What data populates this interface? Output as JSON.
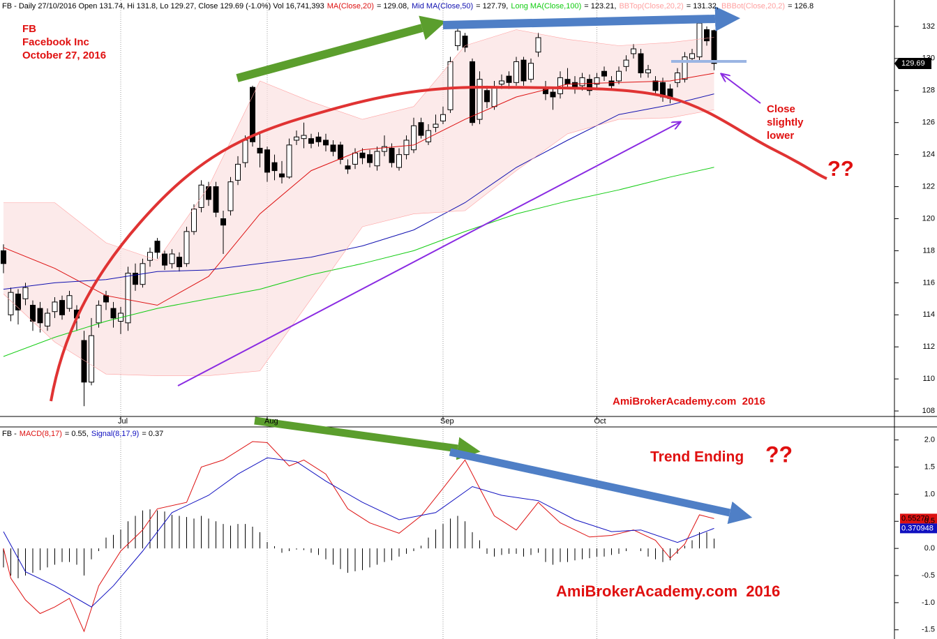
{
  "chart_data": [
    {
      "type": "candlestick",
      "title": "FB - Daily 27/10/2016 Open 131.74, Hi 131.8, Lo 129.27, Close 129.69 (-1.0%) Vol 16,741,393",
      "categories": [
        null,
        null,
        null,
        null,
        null,
        null,
        null,
        null,
        null,
        null,
        null,
        null,
        null,
        null,
        null,
        null,
        "Jul",
        null,
        null,
        null,
        null,
        null,
        null,
        null,
        null,
        null,
        null,
        null,
        null,
        null,
        null,
        null,
        null,
        null,
        null,
        null,
        "Aug",
        null,
        null,
        null,
        null,
        null,
        null,
        null,
        null,
        null,
        null,
        null,
        null,
        null,
        null,
        null,
        null,
        null,
        null,
        null,
        null,
        null,
        null,
        null,
        "Sep",
        null,
        null,
        null,
        null,
        null,
        null,
        null,
        null,
        null,
        null,
        null,
        null,
        null,
        null,
        null,
        null,
        null,
        null,
        null,
        null,
        "Oct",
        null,
        null,
        null,
        null,
        null,
        null,
        null,
        null,
        null,
        null,
        null,
        null,
        null,
        null,
        null,
        null
      ],
      "open": [
        118.0,
        114.0,
        115.3,
        115.0,
        114.6,
        114.4,
        113.3,
        114.2,
        114.9,
        114.4,
        114.3,
        112.4,
        109.8,
        113.5,
        115.2,
        114.4,
        113.6,
        113.5,
        116.6,
        115.9,
        117.4,
        118.6,
        117.8,
        117.2,
        117.6,
        117.2,
        119.2,
        120.7,
        122.0,
        122.0,
        120.0,
        120.5,
        122.4,
        123.5,
        128.2,
        124.4,
        124.3,
        123.5,
        122.8,
        122.6,
        124.9,
        125.0,
        125.0,
        125.1,
        124.9,
        124.6,
        124.6,
        123.3,
        123.4,
        124.1,
        124.0,
        123.3,
        124.2,
        124.4,
        123.2,
        124.0,
        124.3,
        126.0,
        124.8,
        125.7,
        126.1,
        126.8,
        130.8,
        131.4,
        129.8,
        126.2,
        128.0,
        127.0,
        128.4,
        128.9,
        128.5,
        129.9,
        128.7,
        130.4,
        128.2,
        127.9,
        127.8,
        128.7,
        128.5,
        128.3,
        128.7,
        128.4,
        129.2,
        128.6,
        128.6,
        129.5,
        130.3,
        130.3,
        129.1,
        128.6,
        128.5,
        128.1,
        128.5,
        128.7,
        130.0,
        130.1,
        131.8,
        131.74
      ],
      "high": [
        118.4,
        115.7,
        115.6,
        116.0,
        114.9,
        114.8,
        114.4,
        115.1,
        115.2,
        115.5,
        114.6,
        113.0,
        113.8,
        114.9,
        115.5,
        114.8,
        114.5,
        117.0,
        117.2,
        117.5,
        118.2,
        118.8,
        118.0,
        118.1,
        117.9,
        119.5,
        120.9,
        122.4,
        122.3,
        122.3,
        120.5,
        122.6,
        123.9,
        125.2,
        128.3,
        125.3,
        124.5,
        124.0,
        123.6,
        125.0,
        125.5,
        126.0,
        125.3,
        125.4,
        125.3,
        124.9,
        124.8,
        123.7,
        124.4,
        124.4,
        124.3,
        124.5,
        125.2,
        124.7,
        124.4,
        125.2,
        126.3,
        126.3,
        125.9,
        126.5,
        127.0,
        130.1,
        132.1,
        131.6,
        130.0,
        129.2,
        128.3,
        128.6,
        129.0,
        129.2,
        130.1,
        130.1,
        130.0,
        131.6,
        128.6,
        128.2,
        129.2,
        129.4,
        128.9,
        129.1,
        129.0,
        129.1,
        129.5,
        128.9,
        129.5,
        130.2,
        130.9,
        130.6,
        129.6,
        128.9,
        128.8,
        128.4,
        129.4,
        130.4,
        130.6,
        132.4,
        132.0,
        131.8
      ],
      "low": [
        116.6,
        113.6,
        113.4,
        114.6,
        113.0,
        112.9,
        113.0,
        113.8,
        113.7,
        114.2,
        113.0,
        108.3,
        109.6,
        113.2,
        114.3,
        113.2,
        112.8,
        113.0,
        115.5,
        115.7,
        117.0,
        117.5,
        116.8,
        116.9,
        116.7,
        117.0,
        119.0,
        120.4,
        120.8,
        120.1,
        117.8,
        120.2,
        122.1,
        123.2,
        124.5,
        123.2,
        122.3,
        122.4,
        122.2,
        122.5,
        124.6,
        124.4,
        124.4,
        124.5,
        124.2,
        123.9,
        123.4,
        122.8,
        123.1,
        123.4,
        123.2,
        123.0,
        123.9,
        123.2,
        123.0,
        123.7,
        124.1,
        125.0,
        124.6,
        125.4,
        125.9,
        126.6,
        130.5,
        130.4,
        125.8,
        125.9,
        126.9,
        126.8,
        128.1,
        128.1,
        128.3,
        128.3,
        128.5,
        130.1,
        127.4,
        126.8,
        127.5,
        128.1,
        127.8,
        128.0,
        127.7,
        128.1,
        128.6,
        128.0,
        128.4,
        129.2,
        130.0,
        128.8,
        128.8,
        127.7,
        127.3,
        127.2,
        128.2,
        128.5,
        129.8,
        129.9,
        130.8,
        129.27
      ],
      "close": [
        117.2,
        115.4,
        114.3,
        115.7,
        113.6,
        113.5,
        114.1,
        114.8,
        114.0,
        115.2,
        113.8,
        109.8,
        112.7,
        114.6,
        114.8,
        113.8,
        114.1,
        116.6,
        115.9,
        117.2,
        117.9,
        117.9,
        117.1,
        117.8,
        117.0,
        119.2,
        120.6,
        122.1,
        121.2,
        120.4,
        119.6,
        122.3,
        123.4,
        124.9,
        124.8,
        124.1,
        122.9,
        123.0,
        122.6,
        124.6,
        125.1,
        125.2,
        124.7,
        124.8,
        124.6,
        124.2,
        123.7,
        123.1,
        124.1,
        123.8,
        123.5,
        124.2,
        124.5,
        123.5,
        124.0,
        124.9,
        125.8,
        125.2,
        125.5,
        125.9,
        126.5,
        129.8,
        131.7,
        130.7,
        126.0,
        128.7,
        127.3,
        128.2,
        128.6,
        128.5,
        129.8,
        128.6,
        129.7,
        131.3,
        127.8,
        127.6,
        128.8,
        128.4,
        128.1,
        128.8,
        128.0,
        128.8,
        128.9,
        128.3,
        129.2,
        129.9,
        130.6,
        129.1,
        129.3,
        128.0,
        127.6,
        127.5,
        129.1,
        130.1,
        130.3,
        132.2,
        131.1,
        129.69
      ],
      "up_color": "#ffffff",
      "down_color": "#000000",
      "band_color": "#fbe1e1",
      "series": [
        {
          "name": "MA(Close,20)",
          "legend_value": "= 129.08,",
          "color": "#dd1111",
          "x": [
            0,
            7,
            14,
            21,
            28,
            35,
            42,
            49,
            56,
            63,
            70,
            77,
            84,
            91,
            97
          ],
          "values": [
            118.2,
            116.9,
            115.2,
            114.6,
            116.4,
            120.3,
            123.0,
            124.3,
            124.6,
            126.2,
            127.6,
            128.4,
            128.5,
            128.6,
            129.08
          ]
        },
        {
          "name": "Mid MA(Close,50)",
          "legend_value": "= 127.79,",
          "color": "#1010b0",
          "x": [
            0,
            7,
            14,
            21,
            28,
            35,
            42,
            49,
            56,
            63,
            70,
            77,
            84,
            91,
            97
          ],
          "values": [
            115.6,
            116.0,
            116.2,
            116.7,
            116.8,
            117.2,
            117.6,
            118.3,
            119.3,
            121.0,
            123.2,
            124.9,
            126.5,
            127.1,
            127.79
          ]
        },
        {
          "name": "Long MA(Close,100)",
          "legend_value": "= 123.21,",
          "color": "#11cc11",
          "x": [
            0,
            7,
            14,
            21,
            28,
            35,
            42,
            49,
            56,
            63,
            70,
            77,
            84,
            91,
            97
          ],
          "values": [
            111.4,
            112.6,
            113.6,
            114.4,
            115.0,
            115.6,
            116.5,
            117.2,
            118.0,
            119.2,
            120.3,
            121.1,
            121.8,
            122.6,
            123.21
          ]
        },
        {
          "name": "BBTop(Close,20,2)",
          "legend_value": "= 131.32,",
          "color": "#ffa0a0",
          "x": [
            0,
            7,
            14,
            21,
            28,
            35,
            42,
            49,
            56,
            63,
            70,
            77,
            84,
            91,
            97
          ],
          "values": [
            121.0,
            121.0,
            118.5,
            117.4,
            122.0,
            128.6,
            127.3,
            126.2,
            127.0,
            130.8,
            131.8,
            131.2,
            130.8,
            131.0,
            131.32
          ]
        },
        {
          "name": "BBBot(Close,20,2)",
          "legend_value": "= 126.8",
          "color": "#ffa0a0",
          "x": [
            0,
            7,
            14,
            21,
            28,
            35,
            42,
            49,
            56,
            63,
            70,
            77,
            84,
            91,
            97
          ],
          "values": [
            115.3,
            112.3,
            110.3,
            110.2,
            110.2,
            110.5,
            115.0,
            119.5,
            120.3,
            120.5,
            123.0,
            125.3,
            126.2,
            126.3,
            126.8
          ]
        }
      ],
      "ylim": [
        107.7,
        133.65
      ],
      "yticks": [
        108,
        110,
        112,
        114,
        116,
        118,
        120,
        122,
        124,
        126,
        128,
        130,
        132
      ],
      "last_label": "129.69",
      "annotations": [
        "FB",
        "Facebook Inc",
        "October 27, 2016",
        "AmiBrokerAcademy.com  2016",
        "Close",
        "slightly",
        "lower",
        "??"
      ]
    },
    {
      "type": "macd",
      "title": "FB -",
      "series": [
        {
          "name": "MACD(8,17)",
          "legend_value": "= 0.55,",
          "color": "#dd1111",
          "x": [
            0,
            1,
            3,
            5,
            7,
            9,
            11,
            13,
            16,
            19,
            21,
            25,
            27,
            30,
            34,
            36,
            39,
            41,
            44,
            47,
            50,
            54,
            57,
            60,
            63,
            65,
            67,
            70,
            73,
            76,
            80,
            83,
            86,
            89,
            91,
            93,
            95,
            97
          ],
          "values": [
            0.0,
            -0.55,
            -0.95,
            -1.2,
            -1.08,
            -0.92,
            -1.53,
            -0.69,
            -0.05,
            0.34,
            0.73,
            0.85,
            1.5,
            1.63,
            1.97,
            1.95,
            1.52,
            1.63,
            1.37,
            0.73,
            0.47,
            0.28,
            0.6,
            1.11,
            1.63,
            1.11,
            0.6,
            0.34,
            0.85,
            0.47,
            0.21,
            0.24,
            0.34,
            0.15,
            -0.18,
            0.08,
            0.62,
            0.55
          ],
          "last_label": "0.55270",
          "last_label_color": "#000000"
        },
        {
          "name": "Signal(8,17,9)",
          "legend_value": "= 0.37",
          "color": "#1010c0",
          "x": [
            0,
            3,
            7,
            12,
            15,
            19,
            23,
            28,
            32,
            36,
            40,
            44,
            49,
            54,
            59,
            64,
            68,
            73,
            78,
            83,
            87,
            92,
            97
          ],
          "values": [
            0.31,
            -0.43,
            -0.69,
            -1.08,
            -0.69,
            -0.05,
            0.66,
            0.98,
            1.37,
            1.67,
            1.6,
            1.24,
            0.85,
            0.53,
            0.66,
            1.14,
            0.98,
            0.88,
            0.53,
            0.31,
            0.34,
            0.11,
            0.37
          ],
          "last_label": "0.370948",
          "last_label_color": "#ffffff"
        }
      ],
      "histogram": {
        "color": "#000000",
        "values": [
          -0.35,
          -0.5,
          -0.55,
          -0.5,
          -0.45,
          -0.4,
          -0.35,
          -0.3,
          -0.25,
          -0.25,
          -0.3,
          -0.5,
          -0.2,
          -0.05,
          0.2,
          0.25,
          0.35,
          0.5,
          0.6,
          0.7,
          0.72,
          0.7,
          0.68,
          0.62,
          0.6,
          0.58,
          0.55,
          0.6,
          0.55,
          0.5,
          0.45,
          0.42,
          0.45,
          0.45,
          0.4,
          0.3,
          0.12,
          0.04,
          -0.08,
          -0.05,
          -0.02,
          -0.03,
          -0.08,
          -0.12,
          -0.2,
          -0.3,
          -0.38,
          -0.45,
          -0.42,
          -0.4,
          -0.35,
          -0.3,
          -0.25,
          -0.22,
          -0.15,
          -0.1,
          -0.05,
          0.05,
          0.2,
          0.35,
          0.45,
          0.55,
          0.6,
          0.5,
          0.3,
          0.15,
          -0.1,
          -0.15,
          -0.12,
          -0.1,
          -0.1,
          -0.15,
          -0.12,
          -0.08,
          -0.25,
          -0.3,
          -0.25,
          -0.25,
          -0.22,
          -0.2,
          -0.18,
          -0.15,
          -0.15,
          -0.12,
          -0.1,
          -0.05,
          0.0,
          -0.05,
          -0.15,
          -0.2,
          -0.25,
          -0.22,
          -0.1,
          0.05,
          0.15,
          0.3,
          0.3,
          0.18
        ]
      },
      "ylim": [
        -1.67,
        2.24
      ],
      "yticks": [
        -1.5,
        {
          "value": -1,
          "label": "-1.0"
        },
        -0.5,
        {
          "value": 0,
          "label": "0.0"
        },
        0.5,
        {
          "value": 1,
          "label": "1.0"
        },
        1.5,
        {
          "value": 2,
          "label": "2.0"
        }
      ],
      "annotations": [
        "Trend Ending",
        "??",
        "AmiBrokerAcademy.com  2016"
      ]
    }
  ]
}
